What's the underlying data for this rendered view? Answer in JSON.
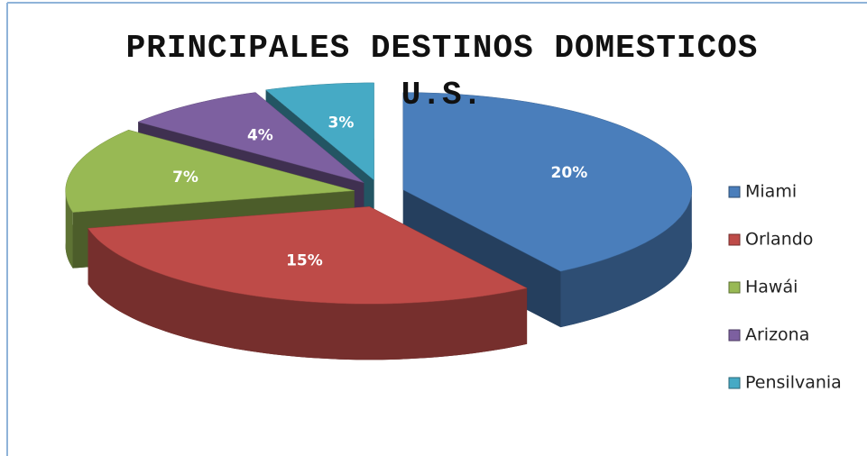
{
  "chart_data": {
    "type": "pie3d",
    "title": "PRINCIPALES DESTINOS DOMESTICOS U.S.",
    "categories": [
      "Miami",
      "Orlando",
      "Hawái",
      "Arizona",
      "Pensilvania"
    ],
    "values": [
      20,
      15,
      7,
      4,
      3
    ],
    "value_labels": [
      "20%",
      "15%",
      "7%",
      "4%",
      "3%"
    ],
    "colors": [
      "#4a7ebb",
      "#be4b48",
      "#98b954",
      "#7d60a0",
      "#46aac5"
    ],
    "legend": "right"
  }
}
